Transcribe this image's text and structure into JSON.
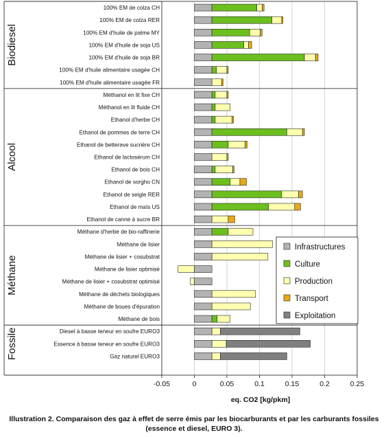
{
  "chart_data": {
    "type": "bar",
    "orientation": "horizontal",
    "stacked": true,
    "xlabel": "eq. CO2 [kg/pkm]",
    "xlim": [
      -0.05,
      0.25
    ],
    "xticks": [
      "-0.05",
      "0",
      "0.05",
      "0.1",
      "0.15",
      "0.2",
      "0.25"
    ],
    "xtick_values": [
      -0.05,
      0,
      0.05,
      0.1,
      0.15,
      0.2,
      0.25
    ],
    "legend_position": "right",
    "series": [
      {
        "name": "Infrastructures",
        "color": "#b3b3b3"
      },
      {
        "name": "Culture",
        "color": "#6cbf1e"
      },
      {
        "name": "Production",
        "color": "#ffffb0"
      },
      {
        "name": "Transport",
        "color": "#e8a817"
      },
      {
        "name": "Exploitation",
        "color": "#808080"
      }
    ],
    "groups": [
      {
        "name": "Biodiesel",
        "categories": [
          {
            "label": "100% EM de colza CH",
            "values": [
              0.027,
              0.069,
              0.008,
              0.003,
              0
            ]
          },
          {
            "label": "100% EM de colza RER",
            "values": [
              0.027,
              0.092,
              0.015,
              0.002,
              0
            ]
          },
          {
            "label": "100% EM d'huile de palme MY",
            "values": [
              0.027,
              0.058,
              0.016,
              0.003,
              0
            ]
          },
          {
            "label": "100% EM d'huile de soja US",
            "values": [
              0.027,
              0.049,
              0.007,
              0.005,
              0
            ]
          },
          {
            "label": "100% EM d'huile de soja BR",
            "values": [
              0.027,
              0.142,
              0.017,
              0.004,
              0
            ]
          },
          {
            "label": "100% EM d'huile alimentaire usagée CH",
            "values": [
              0.027,
              0.007,
              0.016,
              0.002,
              0
            ]
          },
          {
            "label": "100% EM d'huile alimentaire usagée FR",
            "values": [
              0.027,
              0.0,
              0.015,
              0.002,
              0
            ]
          }
        ]
      },
      {
        "name": "Alcool",
        "categories": [
          {
            "label": "Méthanol en lit fixe CH",
            "values": [
              0.027,
              0.005,
              0.018,
              0.002,
              0
            ]
          },
          {
            "label": "Méthanol en lit fluide CH",
            "values": [
              0.027,
              0.005,
              0.023,
              0.0,
              0
            ]
          },
          {
            "label": "Ethanol d'herbe CH",
            "values": [
              0.027,
              0.005,
              0.026,
              0.002,
              0
            ]
          },
          {
            "label": "Ethanol de pommes de terre CH",
            "values": [
              0.027,
              0.115,
              0.024,
              0.003,
              0
            ]
          },
          {
            "label": "Ethanol de betterave sucrière CH",
            "values": [
              0.027,
              0.025,
              0.026,
              0.003,
              0
            ]
          },
          {
            "label": "Ethanol de lactosérum CH",
            "values": [
              0.027,
              0.0,
              0.023,
              0.002,
              0
            ]
          },
          {
            "label": "Ethanol de bois CH",
            "values": [
              0.027,
              0.005,
              0.027,
              0.002,
              0
            ]
          },
          {
            "label": "Ethanol de sorgho CN",
            "values": [
              0.027,
              0.028,
              0.015,
              0.01,
              0
            ]
          },
          {
            "label": "Ethanol de seigle RER",
            "values": [
              0.027,
              0.107,
              0.026,
              0.006,
              0
            ]
          },
          {
            "label": "Ethanol de maïs US",
            "values": [
              0.027,
              0.087,
              0.04,
              0.009,
              0
            ]
          },
          {
            "label": "Ethanol de canne à sucre BR",
            "values": [
              0.027,
              0.0,
              0.025,
              0.01,
              0
            ]
          }
        ]
      },
      {
        "name": "Méthane",
        "categories": [
          {
            "label": "Méthane d'herbe de bio-raffinerie",
            "values": [
              0.027,
              0.025,
              0.038,
              0,
              0
            ]
          },
          {
            "label": "Méthane de lisier",
            "values": [
              0.027,
              0,
              0.093,
              0,
              0
            ]
          },
          {
            "label": "Méthane de lisier + cosubstrat",
            "values": [
              0.027,
              0,
              0.086,
              0,
              0
            ]
          },
          {
            "label": "Méthane de lisier optimisé",
            "values": [
              0.027,
              0,
              -0.025,
              0,
              0
            ]
          },
          {
            "label": "Méthane de lisier + cosubstrat optimisé",
            "values": [
              0.027,
              0,
              -0.006,
              0,
              0
            ]
          },
          {
            "label": "Méthane de déchets biologiques",
            "values": [
              0.027,
              0,
              0.067,
              0,
              0
            ]
          },
          {
            "label": "Méthane de boues d'épuration",
            "values": [
              0.027,
              0,
              0.059,
              0,
              0
            ]
          },
          {
            "label": "Méthane de bois",
            "values": [
              0.027,
              0.008,
              0.02,
              0,
              0
            ]
          }
        ]
      },
      {
        "name": "Fossile",
        "categories": [
          {
            "label": "Diesel à basse teneur en soufre EURO3",
            "values": [
              0.027,
              0,
              0.013,
              0,
              0.122
            ]
          },
          {
            "label": "Essence à basse teneur en soufre EURO3",
            "values": [
              0.027,
              0,
              0.022,
              0,
              0.129
            ]
          },
          {
            "label": "Gaz naturel EURO3",
            "values": [
              0.027,
              0,
              0.013,
              0,
              0.102
            ]
          }
        ]
      }
    ]
  },
  "caption": {
    "line1": "Illustration 2. Comparaison des gaz à effet de serre émis par les biocarburants et par les carburants fossiles",
    "line2": "(essence et diesel, EURO 3)."
  }
}
